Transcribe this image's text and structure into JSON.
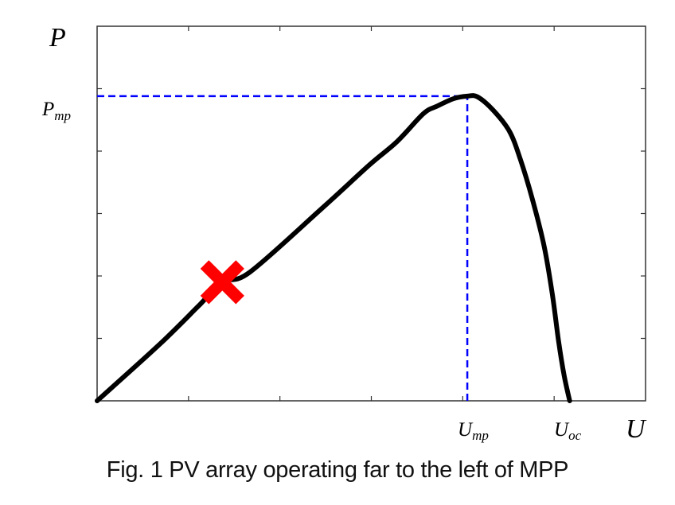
{
  "chart_data": {
    "type": "line",
    "title": "Fig. 1 PV array operating far to the left of MPP",
    "xlabel": "U",
    "ylabel": "P",
    "xlim": [
      0,
      6
    ],
    "ylim": [
      0,
      6
    ],
    "grid": false,
    "x_ticks": [
      0,
      1,
      2,
      3,
      4,
      5,
      6
    ],
    "y_ticks": [
      0,
      1,
      2,
      3,
      4,
      5,
      6
    ],
    "tick_labels": {
      "x": [
        {
          "value": 4.05,
          "label": "U",
          "sub": "mp"
        },
        {
          "value": 5.17,
          "label": "U",
          "sub": "oc"
        }
      ],
      "y": [
        {
          "value": 4.88,
          "label": "P",
          "sub": "mp"
        }
      ]
    },
    "series": [
      {
        "name": "P-U curve",
        "color": "#000000",
        "x": [
          0,
          0.68,
          1.11,
          1.37,
          1.67,
          2.45,
          2.98,
          3.28,
          3.57,
          3.72,
          3.9,
          4.05,
          4.16,
          4.33,
          4.51,
          4.63,
          4.76,
          4.89,
          4.98,
          5.05,
          5.11,
          5.17
        ],
        "y": [
          0,
          0.9,
          1.52,
          1.9,
          2.06,
          3.07,
          3.78,
          4.15,
          4.6,
          4.72,
          4.84,
          4.88,
          4.87,
          4.66,
          4.32,
          3.87,
          3.24,
          2.48,
          1.71,
          0.94,
          0.4,
          0
        ]
      }
    ],
    "annotations": [
      {
        "type": "marker",
        "shape": "x",
        "color": "#ff0000",
        "x": 1.37,
        "y": 1.9,
        "meaning": "operating point far left of MPP"
      },
      {
        "type": "dashed-line",
        "color": "#0000ff",
        "from": [
          0,
          4.88
        ],
        "to": [
          4.05,
          4.88
        ]
      },
      {
        "type": "dashed-line",
        "color": "#0000ff",
        "from": [
          4.05,
          0
        ],
        "to": [
          4.05,
          4.88
        ]
      }
    ]
  },
  "labels": {
    "y_axis": "P",
    "x_axis": "U",
    "pmp_main": "P",
    "pmp_sub": "mp",
    "ump_main": "U",
    "ump_sub": "mp",
    "uoc_main": "U",
    "uoc_sub": "oc"
  },
  "caption": "Fig. 1 PV array operating far to the left of MPP",
  "colors": {
    "curve": "#000000",
    "guide": "#0000ff",
    "marker": "#ff0000",
    "axis": "#333333"
  }
}
